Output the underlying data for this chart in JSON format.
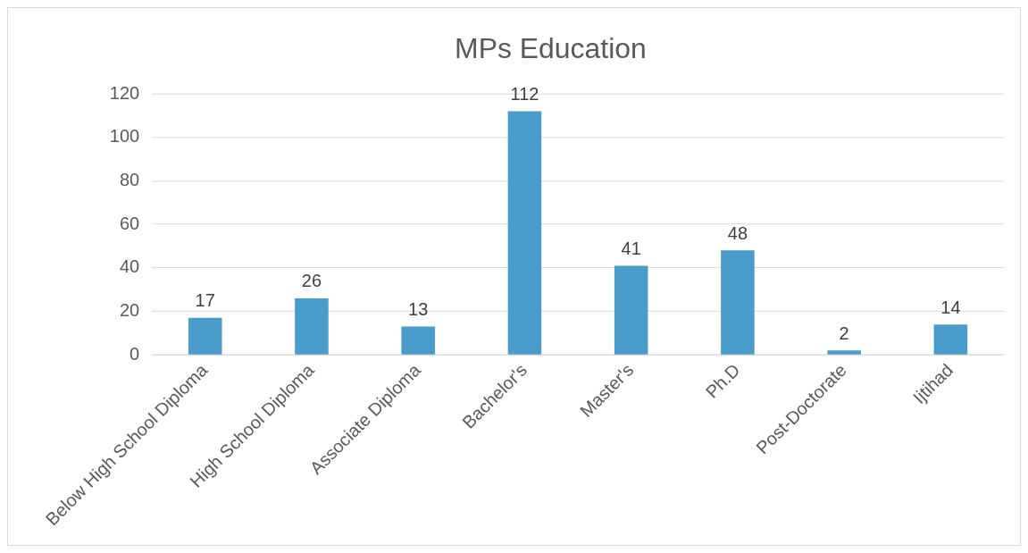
{
  "chart_data": {
    "type": "bar",
    "title": "MPs Education",
    "categories": [
      "Below High School Diploma",
      "High School Diploma",
      "Associate Diploma",
      "Bachelor's",
      "Master's",
      "Ph.D",
      "Post-Doctorate",
      "Ijtihad"
    ],
    "values": [
      17,
      26,
      13,
      112,
      41,
      48,
      2,
      14
    ],
    "color": "#4a9cca",
    "ylim": [
      0,
      120
    ],
    "yticks": [
      0,
      20,
      40,
      60,
      80,
      100,
      120
    ],
    "grid": "y",
    "data_labels": true,
    "legend": false
  }
}
